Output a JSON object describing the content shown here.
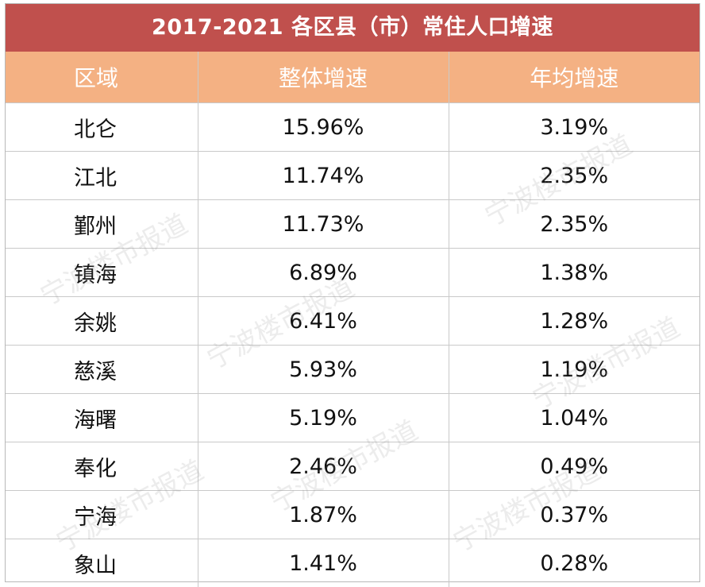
{
  "chart_data": {
    "type": "table",
    "title": "2017-2021 各区县（市）常住人口增速",
    "columns": [
      "区域",
      "整体增速",
      "年均增速"
    ],
    "rows": [
      [
        "北仑",
        "15.96%",
        "3.19%"
      ],
      [
        "江北",
        "11.74%",
        "2.35%"
      ],
      [
        "鄞州",
        "11.73%",
        "2.35%"
      ],
      [
        "镇海",
        "6.89%",
        "1.38%"
      ],
      [
        "余姚",
        "6.41%",
        "1.28%"
      ],
      [
        "慈溪",
        "5.93%",
        "1.19%"
      ],
      [
        "海曙",
        "5.19%",
        "1.04%"
      ],
      [
        "奉化",
        "2.46%",
        "0.49%"
      ],
      [
        "宁海",
        "1.87%",
        "0.37%"
      ],
      [
        "象山",
        "1.41%",
        "0.28%"
      ]
    ]
  },
  "watermark": "宁波楼市报道",
  "colors": {
    "title_bg": "#c0504d",
    "header_bg": "#f4b183",
    "header_text": "#ffffff",
    "grid": "#c9c9c9"
  }
}
